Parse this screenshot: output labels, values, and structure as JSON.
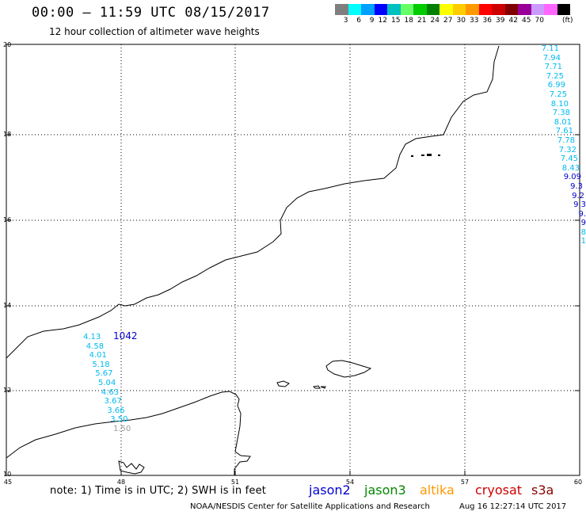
{
  "header": {
    "title": "00:00 – 11:59 UTC 08/15/2017",
    "subtitle": "12 hour collection of altimeter wave heights"
  },
  "scale": {
    "unit": "(ft)",
    "labels": [
      "3",
      "6",
      "9",
      "12",
      "15",
      "18",
      "21",
      "24",
      "27",
      "30",
      "33",
      "36",
      "39",
      "42",
      "45",
      "70"
    ],
    "colors": [
      "#7f7f7f",
      "#00ffff",
      "#00a0ff",
      "#0000ff",
      "#00c0c0",
      "#66ff66",
      "#00cc00",
      "#008000",
      "#ffff00",
      "#ffcc00",
      "#ff9900",
      "#ff0000",
      "#cc0000",
      "#800000",
      "#990099",
      "#cc99ff",
      "#ff66ff",
      "#000000"
    ]
  },
  "axes": {
    "lat_labels": [
      "20",
      "18",
      "16",
      "14",
      "12",
      "10"
    ],
    "lon_labels": [
      "45",
      "48",
      "51",
      "54",
      "57",
      "60"
    ]
  },
  "observations": {
    "right_track": [
      "7.11",
      "7.94",
      "7.71",
      "7.25",
      "6.99",
      "7.25",
      "8.10",
      "7.38",
      "8.01",
      "7.61",
      "7.78",
      "7.32",
      "7.45",
      "8.43",
      "9.09",
      "9.3",
      "9.2",
      "9.3",
      "9.",
      "9",
      "8",
      "1"
    ],
    "right_colors": [
      "#00bbee",
      "#00bbee",
      "#00bbee",
      "#00bbee",
      "#00bbee",
      "#00bbee",
      "#00bbee",
      "#00bbee",
      "#00bbee",
      "#00bbee",
      "#00bbee",
      "#00bbee",
      "#00bbee",
      "#00bbee",
      "#0000cc",
      "#0000cc",
      "#0000cc",
      "#0000cc",
      "#0000cc",
      "#0000cc",
      "#00bbee",
      "#00bbee"
    ],
    "left_track": [
      "4.13",
      "4.58",
      "4.01",
      "5.18",
      "5.67",
      "5.04",
      "4.63",
      "3.67",
      "3.66",
      "3.50",
      "1.50"
    ],
    "left_colors": [
      "#00bbee",
      "#00bbee",
      "#00bbee",
      "#00bbee",
      "#00bbee",
      "#00bbee",
      "#00bbee",
      "#00bbee",
      "#00bbee",
      "#00bbee",
      "#999999"
    ],
    "pass_id": "1042"
  },
  "footer": {
    "note": "note:  1) Time is in UTC;  2) SWH is in feet",
    "legend": [
      {
        "label": "jason2",
        "color": "#0000cc"
      },
      {
        "label": "jason3",
        "color": "#008800"
      },
      {
        "label": "altika",
        "color": "#ff9900"
      },
      {
        "label": "cryosat",
        "color": "#cc0000"
      },
      {
        "label": "s3a",
        "color": "#880000"
      }
    ],
    "credit": "NOAA/NESDIS Center for Satellite Applications and Research",
    "timestamp": "Aug 16 12:27:14 UTC 2017"
  }
}
